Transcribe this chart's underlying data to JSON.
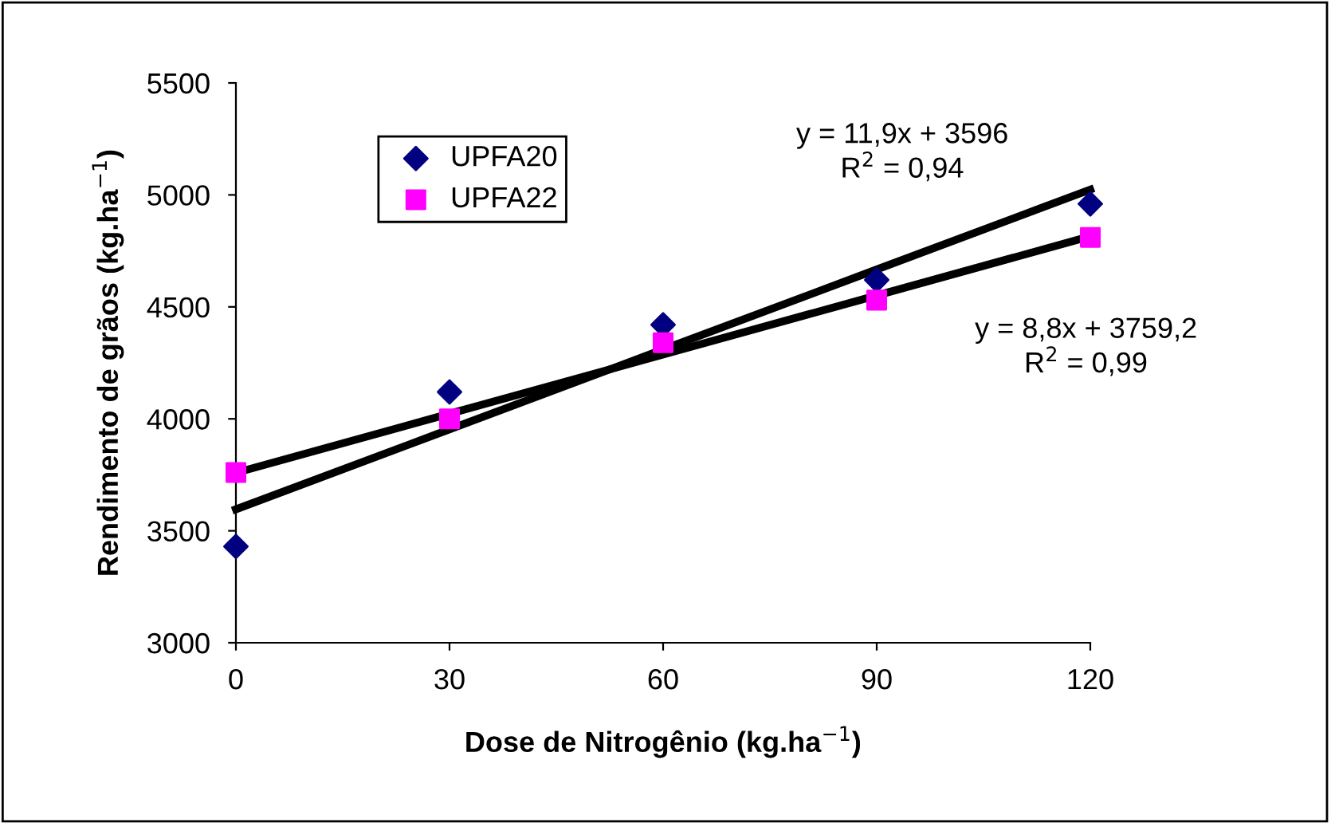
{
  "chart_data": {
    "type": "scatter",
    "xlabel": "Dose de Nitrogênio (kg.ha$^{−1}$)",
    "ylabel": "Rendimento de grãos (kg.ha$^{−1}$)",
    "x": [
      0,
      30,
      60,
      90,
      120
    ],
    "series": [
      {
        "name": "UPFA20",
        "color": "#000080",
        "marker": "diamond",
        "values": [
          3430,
          4120,
          4420,
          4620,
          4960
        ]
      },
      {
        "name": "UPFA22",
        "color": "#ff00ff",
        "marker": "square",
        "values": [
          3760,
          4000,
          4340,
          4530,
          4810
        ]
      },
      {
        "type": "line",
        "color": "#000000",
        "values": [
          3596,
          3953,
          4310,
          4667,
          5024
        ]
      },
      {
        "type": "line",
        "color": "#000000",
        "values": [
          3759,
          4023,
          4287,
          4551,
          4815
        ]
      }
    ],
    "annotations": [
      "y = 11,9x + 3596\nR$^{2}$ = 0,94",
      "y = 8,8x + 3759,2\nR$^{2}$ = 0,99"
    ],
    "xlim": [
      0,
      120
    ],
    "ylim": [
      3000,
      5500
    ],
    "xticks": [
      0,
      30,
      60,
      90,
      120
    ],
    "yticks": [
      3000,
      3500,
      4000,
      4500,
      5000,
      5500
    ],
    "grid": false,
    "legend": "top left"
  }
}
